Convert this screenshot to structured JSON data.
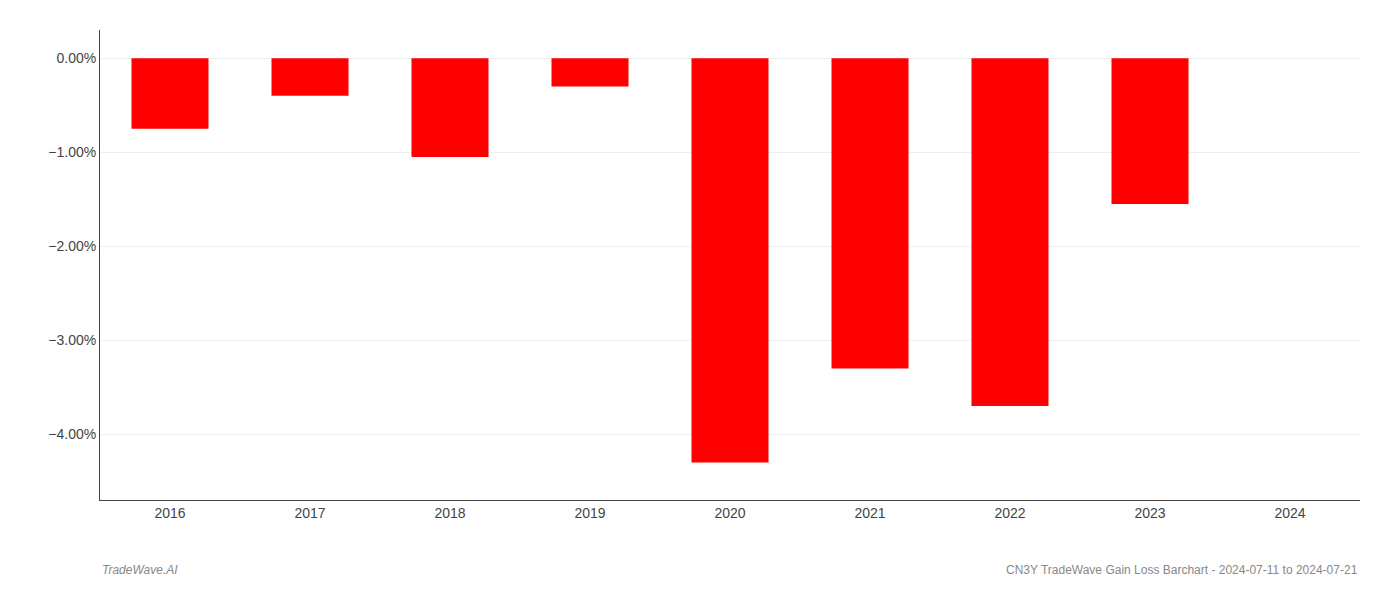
{
  "chart_data": {
    "type": "bar",
    "categories": [
      "2016",
      "2017",
      "2018",
      "2019",
      "2020",
      "2021",
      "2022",
      "2023",
      "2024"
    ],
    "values": [
      -0.0075,
      -0.004,
      -0.0105,
      -0.003,
      -0.043,
      -0.033,
      -0.037,
      -0.0155,
      0.0
    ],
    "color": "#ff0000",
    "ylim": [
      -0.047,
      0.003
    ],
    "yticks": [
      {
        "value": 0.0,
        "label": "0.00%"
      },
      {
        "value": -0.01,
        "label": "−1.00%"
      },
      {
        "value": -0.02,
        "label": "−2.00%"
      },
      {
        "value": -0.03,
        "label": "−3.00%"
      },
      {
        "value": -0.04,
        "label": "−4.00%"
      }
    ],
    "grid": true,
    "annotations": [
      "TradeWave.AI",
      "CN3Y TradeWave Gain Loss Barchart - 2024-07-11 to 2024-07-21"
    ]
  }
}
